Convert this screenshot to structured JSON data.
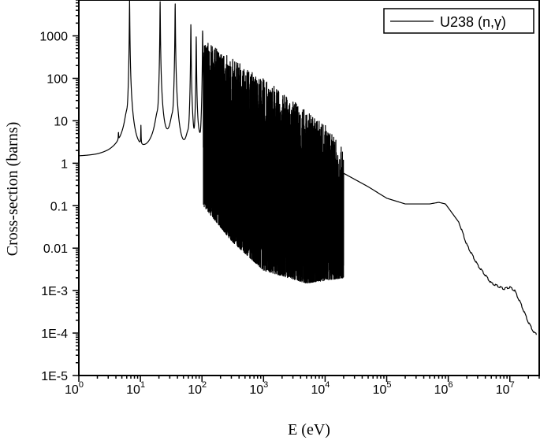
{
  "chart_data": {
    "type": "line",
    "title": "",
    "xlabel": "E (eV)",
    "ylabel": "Cross-section (barns)",
    "xscale": "log",
    "yscale": "log",
    "xlim": [
      1,
      30000000
    ],
    "ylim": [
      1e-05,
      7000
    ],
    "grid": false,
    "legend_position": "top-right",
    "series": [
      {
        "name": "U238 (n,γ)",
        "color": "#000000",
        "description": "resolved resonance region 6.67 eV to ~20 keV (dense resonances), smooth continuum above",
        "resonances": [
          {
            "E": 4.4,
            "peak": 1.9
          },
          {
            "E": 6.67,
            "peak": 7000
          },
          {
            "E": 10.2,
            "peak": 5
          },
          {
            "E": 20.9,
            "peak": 6500
          },
          {
            "E": 36.7,
            "peak": 6000
          },
          {
            "E": 66.0,
            "peak": 2000
          },
          {
            "E": 80.7,
            "peak": 1000
          },
          {
            "E": 102.5,
            "peak": 1500
          }
        ],
        "dense_region": {
          "x_start": 105,
          "x_end": 20000,
          "peak_envelope": [
            [
              105,
              800
            ],
            [
              300,
              300
            ],
            [
              1000,
              100
            ],
            [
              3000,
              30
            ],
            [
              10000,
              8
            ],
            [
              20000,
              2
            ]
          ],
          "valley_envelope": [
            [
              105,
              0.1
            ],
            [
              300,
              0.015
            ],
            [
              1000,
              0.003
            ],
            [
              5000,
              0.0015
            ],
            [
              20000,
              0.002
            ]
          ]
        },
        "continuum": [
          [
            1,
            0.5
          ],
          [
            2,
            0.46
          ],
          [
            3,
            0.5
          ],
          [
            5,
            0.7
          ],
          [
            20000,
            0.58
          ],
          [
            50000,
            0.28
          ],
          [
            100000,
            0.15
          ],
          [
            200000,
            0.11
          ],
          [
            500000,
            0.11
          ],
          [
            700000,
            0.12
          ],
          [
            900000,
            0.11
          ],
          [
            1500000,
            0.04
          ],
          [
            2000000,
            0.012
          ],
          [
            3000000,
            0.004
          ],
          [
            5000000,
            0.0015
          ],
          [
            8000000,
            0.0011
          ],
          [
            10000000,
            0.0012
          ],
          [
            12000000,
            0.001
          ],
          [
            15000000,
            0.0005
          ],
          [
            20000000,
            0.00018
          ],
          [
            25000000,
            0.0001
          ],
          [
            27000000,
            9.5e-05
          ]
        ]
      }
    ],
    "x_ticks": [
      {
        "base": "10",
        "exp": "0",
        "value": 1
      },
      {
        "base": "10",
        "exp": "1",
        "value": 10
      },
      {
        "base": "10",
        "exp": "2",
        "value": 100
      },
      {
        "base": "10",
        "exp": "3",
        "value": 1000
      },
      {
        "base": "10",
        "exp": "4",
        "value": 10000
      },
      {
        "base": "10",
        "exp": "5",
        "value": 100000
      },
      {
        "base": "10",
        "exp": "6",
        "value": 1000000
      },
      {
        "base": "10",
        "exp": "7",
        "value": 10000000
      }
    ],
    "y_ticks": [
      {
        "label": "1000",
        "value": 1000
      },
      {
        "label": "100",
        "value": 100
      },
      {
        "label": "10",
        "value": 10
      },
      {
        "label": "1",
        "value": 1
      },
      {
        "label": "0.1",
        "value": 0.1
      },
      {
        "label": "0.01",
        "value": 0.01
      },
      {
        "label": "1E-3",
        "value": 0.001
      },
      {
        "label": "1E-4",
        "value": 0.0001
      },
      {
        "label": "1E-5",
        "value": 1e-05
      }
    ]
  }
}
